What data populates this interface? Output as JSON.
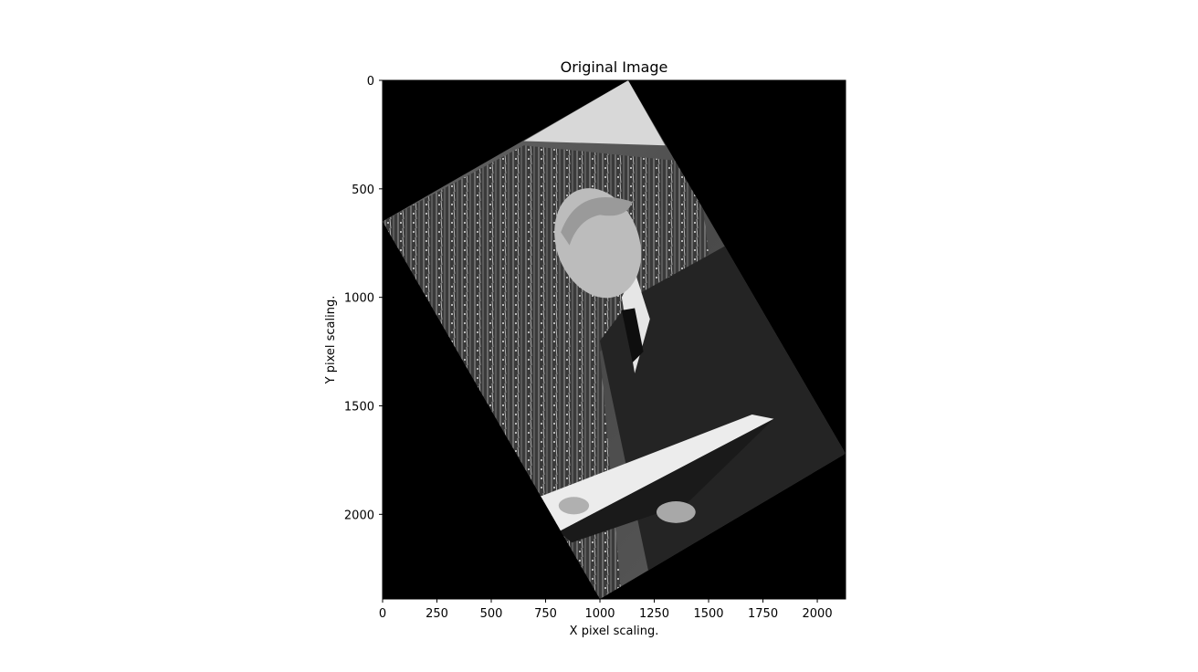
{
  "chart_data": {
    "type": "image",
    "title": "Original Image",
    "xlabel": "X pixel scaling.",
    "ylabel": "Y pixel scaling.",
    "xlim": [
      0,
      2130
    ],
    "ylim": [
      2390,
      0
    ],
    "x_ticks": [
      0,
      250,
      500,
      750,
      1000,
      1250,
      1500,
      1750,
      2000
    ],
    "y_ticks": [
      0,
      500,
      1000,
      1500,
      2000
    ],
    "colormap": "gray",
    "photo_corners": [
      [
        1130,
        0
      ],
      [
        2130,
        1720
      ],
      [
        1000,
        2390
      ],
      [
        0,
        650
      ]
    ],
    "photo_description": "rotated black-and-white photograph of a man in a suit holding an open book in front of a wired machine"
  }
}
